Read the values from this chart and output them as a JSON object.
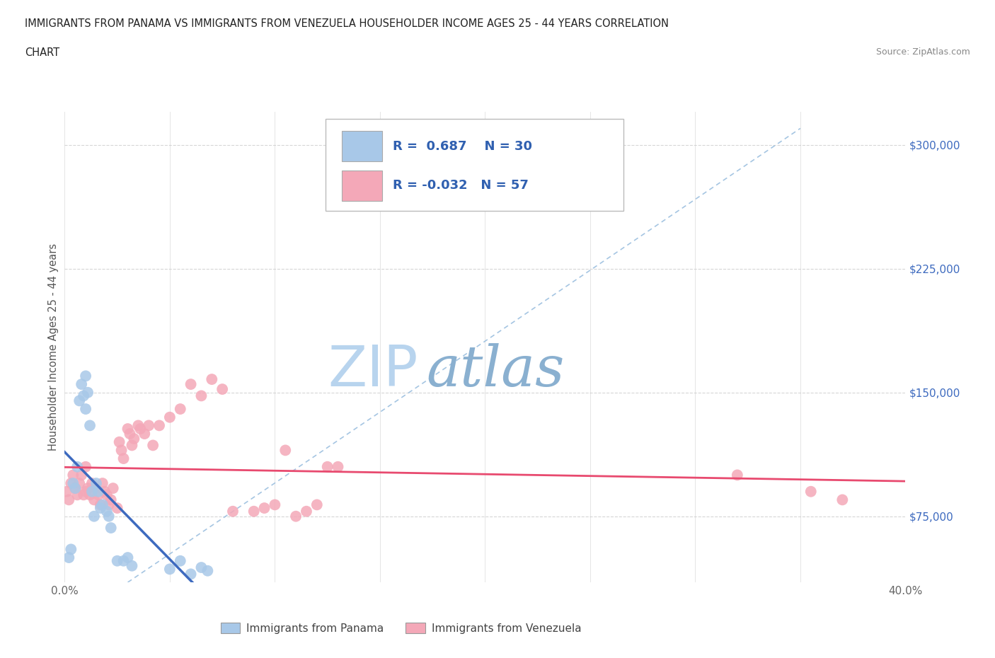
{
  "title_line1": "IMMIGRANTS FROM PANAMA VS IMMIGRANTS FROM VENEZUELA HOUSEHOLDER INCOME AGES 25 - 44 YEARS CORRELATION",
  "title_line2": "CHART",
  "source": "Source: ZipAtlas.com",
  "ylabel": "Householder Income Ages 25 - 44 years",
  "xlim": [
    0.0,
    0.4
  ],
  "ylim": [
    35000,
    320000
  ],
  "yticks": [
    75000,
    150000,
    225000,
    300000
  ],
  "ytick_labels": [
    "$75,000",
    "$150,000",
    "$225,000",
    "$300,000"
  ],
  "xticks": [
    0.0,
    0.05,
    0.1,
    0.15,
    0.2,
    0.25,
    0.3,
    0.35,
    0.4
  ],
  "xtick_labels": [
    "0.0%",
    "",
    "",
    "",
    "",
    "",
    "",
    "",
    "40.0%"
  ],
  "panama_color": "#a8c8e8",
  "venezuela_color": "#f4a8b8",
  "panama_line_color": "#3d6abf",
  "venezuela_line_color": "#e84a6f",
  "diagonal_color": "#9bbfdf",
  "R_panama": 0.687,
  "N_panama": 30,
  "R_venezuela": -0.032,
  "N_venezuela": 57,
  "panama_x": [
    0.002,
    0.003,
    0.004,
    0.005,
    0.006,
    0.007,
    0.008,
    0.009,
    0.01,
    0.01,
    0.011,
    0.012,
    0.013,
    0.014,
    0.015,
    0.016,
    0.017,
    0.018,
    0.02,
    0.021,
    0.022,
    0.025,
    0.028,
    0.03,
    0.032,
    0.05,
    0.055,
    0.06,
    0.065,
    0.068
  ],
  "panama_y": [
    50000,
    55000,
    95000,
    92000,
    105000,
    145000,
    155000,
    148000,
    160000,
    140000,
    150000,
    130000,
    90000,
    75000,
    95000,
    90000,
    80000,
    82000,
    78000,
    75000,
    68000,
    48000,
    48000,
    50000,
    45000,
    43000,
    48000,
    40000,
    44000,
    42000
  ],
  "venezuela_x": [
    0.001,
    0.002,
    0.003,
    0.004,
    0.005,
    0.006,
    0.007,
    0.008,
    0.009,
    0.01,
    0.01,
    0.011,
    0.012,
    0.013,
    0.014,
    0.015,
    0.016,
    0.017,
    0.018,
    0.019,
    0.02,
    0.021,
    0.022,
    0.023,
    0.025,
    0.026,
    0.027,
    0.028,
    0.03,
    0.031,
    0.032,
    0.033,
    0.035,
    0.036,
    0.038,
    0.04,
    0.042,
    0.045,
    0.05,
    0.055,
    0.06,
    0.065,
    0.07,
    0.075,
    0.08,
    0.09,
    0.095,
    0.1,
    0.105,
    0.11,
    0.115,
    0.12,
    0.125,
    0.13,
    0.32,
    0.355,
    0.37
  ],
  "venezuela_y": [
    90000,
    85000,
    95000,
    100000,
    92000,
    88000,
    95000,
    100000,
    88000,
    90000,
    105000,
    92000,
    88000,
    95000,
    85000,
    92000,
    88000,
    82000,
    95000,
    90000,
    88000,
    82000,
    85000,
    92000,
    80000,
    120000,
    115000,
    110000,
    128000,
    125000,
    118000,
    122000,
    130000,
    128000,
    125000,
    130000,
    118000,
    130000,
    135000,
    140000,
    155000,
    148000,
    158000,
    152000,
    78000,
    78000,
    80000,
    82000,
    115000,
    75000,
    78000,
    82000,
    105000,
    105000,
    100000,
    90000,
    85000
  ],
  "background_color": "#ffffff",
  "grid_color": "#cccccc",
  "grid_style_y": "dotted",
  "grid_style_x": "solid",
  "watermark_text1": "ZIP",
  "watermark_text2": "atlas",
  "watermark_color1": "#b8d4ee",
  "watermark_color2": "#8ab0d0",
  "legend_R_color": "#3060b0",
  "ytick_color": "#3d6abf"
}
